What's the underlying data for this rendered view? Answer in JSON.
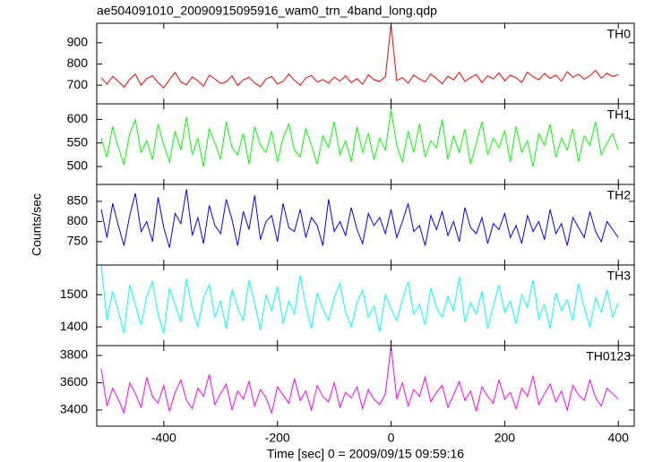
{
  "chart_data": [
    {
      "type": "line",
      "title": "ae504091010_20090915095916_wam0_trn_4band_long.qdp",
      "x": [
        -510,
        -500,
        -490,
        -480,
        -470,
        -460,
        -450,
        -440,
        -430,
        -420,
        -410,
        -400,
        -390,
        -380,
        -370,
        -360,
        -350,
        -340,
        -330,
        -320,
        -310,
        -300,
        -290,
        -280,
        -270,
        -260,
        -250,
        -240,
        -230,
        -220,
        -210,
        -200,
        -190,
        -180,
        -170,
        -160,
        -150,
        -140,
        -130,
        -120,
        -110,
        -100,
        -90,
        -80,
        -70,
        -60,
        -50,
        -40,
        -30,
        -20,
        -10,
        0,
        10,
        20,
        30,
        40,
        50,
        60,
        70,
        80,
        90,
        100,
        110,
        120,
        130,
        140,
        150,
        160,
        170,
        180,
        190,
        200,
        210,
        220,
        230,
        240,
        250,
        260,
        270,
        280,
        290,
        300,
        310,
        320,
        330,
        340,
        350,
        360,
        370,
        380,
        390,
        400
      ],
      "series": [
        {
          "name": "TH0",
          "color": "#ff0000",
          "values": [
            735,
            705,
            742,
            718,
            690,
            728,
            752,
            700,
            731,
            745,
            712,
            688,
            726,
            760,
            715,
            702,
            739,
            721,
            695,
            748,
            730,
            708,
            716,
            744,
            699,
            725,
            737,
            711,
            693,
            729,
            741,
            706,
            718,
            752,
            723,
            700,
            734,
            746,
            715,
            727,
            709,
            738,
            720,
            744,
            712,
            731,
            705,
            749,
            726,
            718,
            740,
            985,
            722,
            735,
            710,
            748,
            729,
            716,
            753,
            731,
            707,
            742,
            725,
            760,
            718,
            736,
            750,
            712,
            744,
            729,
            758,
            721,
            747,
            735,
            713,
            762,
            740,
            726,
            755,
            732,
            748,
            719,
            764,
            737,
            752,
            728,
            745,
            770,
            733,
            756,
            741,
            750
          ]
        }
      ],
      "xlim": [
        -518,
        428
      ],
      "xticks": [
        -400,
        -200,
        0,
        200,
        400
      ],
      "ylim": [
        612,
        992
      ],
      "yticks": [
        700,
        800,
        900
      ]
    },
    {
      "type": "line",
      "x": [
        -510,
        -500,
        -490,
        -480,
        -470,
        -460,
        -450,
        -440,
        -430,
        -420,
        -410,
        -400,
        -390,
        -380,
        -370,
        -360,
        -350,
        -340,
        -330,
        -320,
        -310,
        -300,
        -290,
        -280,
        -270,
        -260,
        -250,
        -240,
        -230,
        -220,
        -210,
        -200,
        -190,
        -180,
        -170,
        -160,
        -150,
        -140,
        -130,
        -120,
        -110,
        -100,
        -90,
        -80,
        -70,
        -60,
        -50,
        -40,
        -30,
        -20,
        -10,
        0,
        10,
        20,
        30,
        40,
        50,
        60,
        70,
        80,
        90,
        100,
        110,
        120,
        130,
        140,
        150,
        160,
        170,
        180,
        190,
        200,
        210,
        220,
        230,
        240,
        250,
        260,
        270,
        280,
        290,
        300,
        310,
        320,
        330,
        340,
        350,
        360,
        370,
        380,
        390,
        400
      ],
      "series": [
        {
          "name": "TH1",
          "color": "#00ff00",
          "values": [
            560,
            520,
            585,
            540,
            505,
            570,
            600,
            530,
            555,
            515,
            590,
            545,
            510,
            575,
            535,
            605,
            525,
            560,
            500,
            580,
            550,
            515,
            595,
            540,
            525,
            570,
            505,
            585,
            545,
            530,
            575,
            510,
            560,
            590,
            535,
            520,
            580,
            545,
            505,
            565,
            540,
            595,
            525,
            555,
            510,
            585,
            530,
            570,
            515,
            560,
            535,
            620,
            545,
            510,
            575,
            530,
            590,
            520,
            555,
            540,
            600,
            515,
            565,
            530,
            580,
            505,
            550,
            595,
            525,
            560,
            540,
            575,
            510,
            585,
            530,
            555,
            500,
            570,
            545,
            590,
            520,
            560,
            535,
            580,
            510,
            565,
            545,
            595,
            525,
            550,
            570,
            535
          ]
        }
      ],
      "xlim": [
        -518,
        428
      ],
      "xticks": [
        -400,
        -200,
        0,
        200,
        400
      ],
      "ylim": [
        462,
        633
      ],
      "yticks": [
        500,
        550,
        600
      ]
    },
    {
      "type": "line",
      "ylabel": "Counts/sec",
      "x": [
        -510,
        -500,
        -490,
        -480,
        -470,
        -460,
        -450,
        -440,
        -430,
        -420,
        -410,
        -400,
        -390,
        -380,
        -370,
        -360,
        -350,
        -340,
        -330,
        -320,
        -310,
        -300,
        -290,
        -280,
        -270,
        -260,
        -250,
        -240,
        -230,
        -220,
        -210,
        -200,
        -190,
        -180,
        -170,
        -160,
        -150,
        -140,
        -130,
        -120,
        -110,
        -100,
        -90,
        -80,
        -70,
        -60,
        -50,
        -40,
        -30,
        -20,
        -10,
        0,
        10,
        20,
        30,
        40,
        50,
        60,
        70,
        80,
        90,
        100,
        110,
        120,
        130,
        140,
        150,
        160,
        170,
        180,
        190,
        200,
        210,
        220,
        230,
        240,
        250,
        260,
        270,
        280,
        290,
        300,
        310,
        320,
        330,
        340,
        350,
        360,
        370,
        380,
        390,
        400
      ],
      "series": [
        {
          "name": "TH2",
          "color": "#0000ff",
          "values": [
            830,
            760,
            845,
            790,
            740,
            815,
            870,
            775,
            800,
            750,
            860,
            785,
            735,
            820,
            795,
            880,
            765,
            810,
            745,
            840,
            790,
            770,
            855,
            805,
            740,
            825,
            780,
            865,
            755,
            800,
            815,
            750,
            845,
            785,
            775,
            830,
            760,
            810,
            790,
            740,
            855,
            775,
            800,
            765,
            835,
            780,
            745,
            820,
            790,
            810,
            770,
            830,
            760,
            800,
            845,
            775,
            790,
            740,
            815,
            780,
            825,
            765,
            800,
            750,
            835,
            785,
            770,
            810,
            745,
            795,
            780,
            820,
            760,
            790,
            745,
            815,
            775,
            800,
            755,
            830,
            770,
            795,
            740,
            810,
            785,
            760,
            825,
            775,
            750,
            800,
            780,
            760
          ]
        }
      ],
      "xlim": [
        -518,
        428
      ],
      "xticks": [
        -400,
        -200,
        0,
        200,
        400
      ],
      "ylim": [
        692,
        892
      ],
      "yticks": [
        750,
        800,
        850
      ]
    },
    {
      "type": "line",
      "x": [
        -510,
        -500,
        -490,
        -480,
        -470,
        -460,
        -450,
        -440,
        -430,
        -420,
        -410,
        -400,
        -390,
        -380,
        -370,
        -360,
        -350,
        -340,
        -330,
        -320,
        -310,
        -300,
        -290,
        -280,
        -270,
        -260,
        -250,
        -240,
        -230,
        -220,
        -210,
        -200,
        -190,
        -180,
        -170,
        -160,
        -150,
        -140,
        -130,
        -120,
        -110,
        -100,
        -90,
        -80,
        -70,
        -60,
        -50,
        -40,
        -30,
        -20,
        -10,
        0,
        10,
        20,
        30,
        40,
        50,
        60,
        70,
        80,
        90,
        100,
        110,
        120,
        130,
        140,
        150,
        160,
        170,
        180,
        190,
        200,
        210,
        220,
        230,
        240,
        250,
        260,
        270,
        280,
        290,
        300,
        310,
        320,
        330,
        340,
        350,
        360,
        370,
        380,
        390,
        400
      ],
      "series": [
        {
          "name": "TH3",
          "color": "#00ffff",
          "values": [
            1590,
            1420,
            1510,
            1450,
            1380,
            1530,
            1470,
            1405,
            1495,
            1540,
            1440,
            1380,
            1520,
            1470,
            1415,
            1550,
            1455,
            1400,
            1490,
            1530,
            1430,
            1480,
            1395,
            1515,
            1460,
            1420,
            1545,
            1475,
            1390,
            1500,
            1450,
            1525,
            1410,
            1480,
            1440,
            1560,
            1465,
            1395,
            1505,
            1455,
            1420,
            1490,
            1535,
            1445,
            1400,
            1475,
            1515,
            1430,
            1465,
            1385,
            1500,
            1455,
            1420,
            1485,
            1540,
            1440,
            1470,
            1405,
            1520,
            1460,
            1430,
            1495,
            1450,
            1555,
            1415,
            1475,
            1440,
            1510,
            1395,
            1465,
            1530,
            1445,
            1480,
            1410,
            1500,
            1460,
            1545,
            1425,
            1470,
            1395,
            1505,
            1450,
            1485,
            1420,
            1535,
            1460,
            1400,
            1490,
            1445,
            1515,
            1430,
            1475
          ]
        }
      ],
      "xlim": [
        -518,
        428
      ],
      "xticks": [
        -400,
        -200,
        0,
        200,
        400
      ],
      "ylim": [
        1342,
        1592
      ],
      "yticks": [
        1400,
        1500
      ]
    },
    {
      "type": "line",
      "xlabel": "Time [sec] 0 = 2009/09/15 09:59:16",
      "x": [
        -510,
        -500,
        -490,
        -480,
        -470,
        -460,
        -450,
        -440,
        -430,
        -420,
        -410,
        -400,
        -390,
        -380,
        -370,
        -360,
        -350,
        -340,
        -330,
        -320,
        -310,
        -300,
        -290,
        -280,
        -270,
        -260,
        -250,
        -240,
        -230,
        -220,
        -210,
        -200,
        -190,
        -180,
        -170,
        -160,
        -150,
        -140,
        -130,
        -120,
        -110,
        -100,
        -90,
        -80,
        -70,
        -60,
        -50,
        -40,
        -30,
        -20,
        -10,
        0,
        10,
        20,
        30,
        40,
        50,
        60,
        70,
        80,
        90,
        100,
        110,
        120,
        130,
        140,
        150,
        160,
        170,
        180,
        190,
        200,
        210,
        220,
        230,
        240,
        250,
        260,
        270,
        280,
        290,
        300,
        310,
        320,
        330,
        340,
        350,
        360,
        370,
        380,
        390,
        400
      ],
      "series": [
        {
          "name": "TH0123",
          "color": "#ff00ff",
          "values": [
            3700,
            3430,
            3560,
            3480,
            3380,
            3600,
            3520,
            3420,
            3640,
            3500,
            3450,
            3580,
            3390,
            3530,
            3620,
            3470,
            3410,
            3560,
            3500,
            3660,
            3440,
            3520,
            3590,
            3400,
            3540,
            3480,
            3610,
            3430,
            3550,
            3490,
            3380,
            3570,
            3510,
            3450,
            3630,
            3470,
            3540,
            3400,
            3580,
            3500,
            3460,
            3600,
            3420,
            3530,
            3490,
            3570,
            3410,
            3550,
            3480,
            3440,
            3520,
            3870,
            3480,
            3600,
            3430,
            3550,
            3500,
            3640,
            3460,
            3530,
            3580,
            3420,
            3510,
            3610,
            3470,
            3540,
            3390,
            3570,
            3500,
            3450,
            3620,
            3480,
            3530,
            3410,
            3560,
            3500,
            3650,
            3440,
            3520,
            3590,
            3460,
            3540,
            3400,
            3580,
            3510,
            3470,
            3620,
            3490,
            3430,
            3560,
            3520,
            3480
          ]
        }
      ],
      "xlim": [
        -518,
        428
      ],
      "xticks": [
        -400,
        -200,
        0,
        200,
        400
      ],
      "ylim": [
        3282,
        3872
      ],
      "yticks": [
        3400,
        3600,
        3800
      ],
      "xticklabels": true
    }
  ]
}
